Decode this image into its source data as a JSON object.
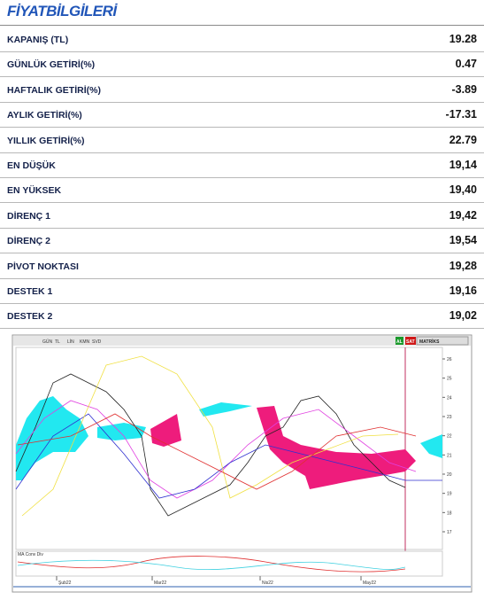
{
  "header": {
    "title": "FİYATBİLGİLERİ"
  },
  "table": {
    "rows": [
      [
        "KAPANIŞ (TL)",
        "19.28"
      ],
      [
        "GÜNLÜK GETİRİ(%)",
        "0.47"
      ],
      [
        "HAFTALIK GETİRİ(%)",
        "-3.89"
      ],
      [
        "AYLIK GETİRİ(%)",
        "-17.31"
      ],
      [
        "YILLIK  GETİRİ(%)",
        "22.79"
      ],
      [
        "EN DÜŞÜK",
        "19,14"
      ],
      [
        "EN YÜKSEK",
        "19,40"
      ],
      [
        "DİRENÇ 1",
        "19,42"
      ],
      [
        "DİRENÇ 2",
        "19,54"
      ],
      [
        "PİVOT NOKTASI",
        "19,28"
      ],
      [
        "DESTEK 1",
        "19,16"
      ],
      [
        "DESTEK 2",
        "19,02"
      ]
    ]
  },
  "chart": {
    "toolbar": [
      "GÜN",
      "TL",
      "LİN",
      "KMN",
      "SVD"
    ],
    "buttons": [
      "AL",
      "SAT",
      "MATRİKS"
    ],
    "yticks": [
      26,
      25,
      24,
      23,
      22,
      21,
      20,
      19,
      18,
      17
    ],
    "xlabels": [
      "Şub22",
      "Mar22",
      "Nis22",
      "May22"
    ],
    "indicator": "MA Conv Div"
  }
}
